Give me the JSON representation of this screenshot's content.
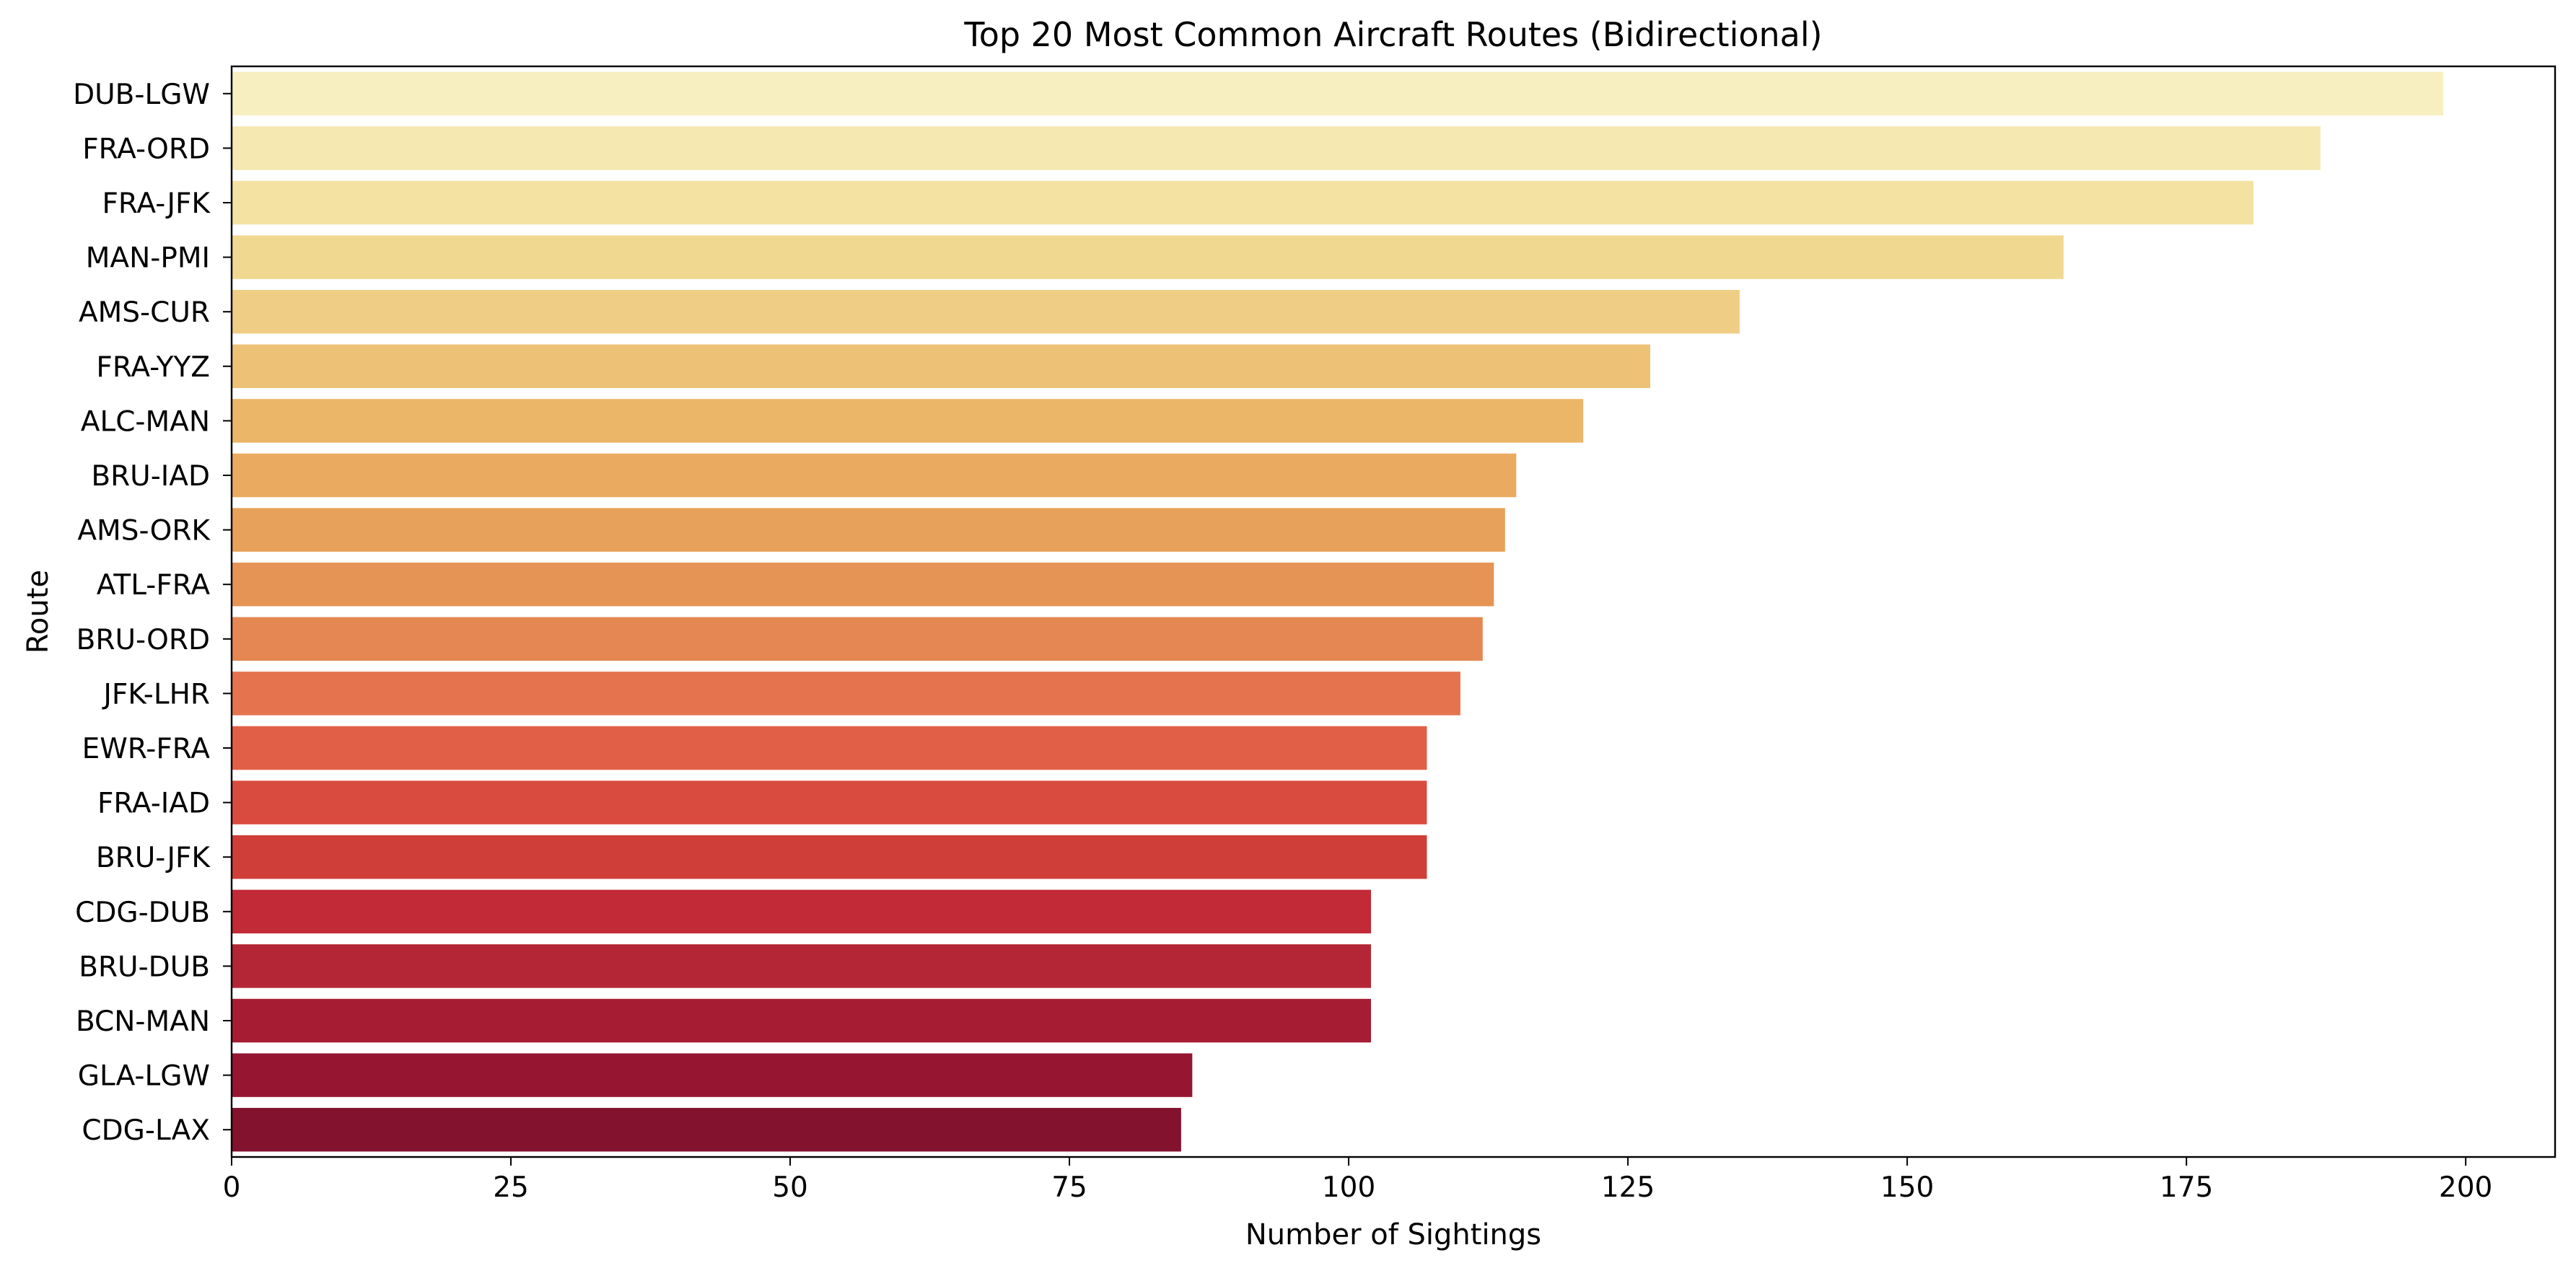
{
  "chart_data": {
    "type": "bar",
    "orientation": "horizontal",
    "title": "Top 20 Most Common Aircraft Routes (Bidirectional)",
    "xlabel": "Number of Sightings",
    "ylabel": "Route",
    "xlim": [
      0,
      208
    ],
    "xticks": [
      0,
      25,
      50,
      75,
      100,
      125,
      150,
      175,
      200
    ],
    "grid": false,
    "legend": "none",
    "categories": [
      "DUB-LGW",
      "FRA-ORD",
      "FRA-JFK",
      "MAN-PMI",
      "AMS-CUR",
      "FRA-YYZ",
      "ALC-MAN",
      "BRU-IAD",
      "AMS-ORK",
      "ATL-FRA",
      "BRU-ORD",
      "JFK-LHR",
      "EWR-FRA",
      "FRA-IAD",
      "BRU-JFK",
      "CDG-DUB",
      "BRU-DUB",
      "BCN-MAN",
      "GLA-LGW",
      "CDG-LAX"
    ],
    "values": [
      198,
      187,
      181,
      164,
      135,
      127,
      121,
      115,
      114,
      113,
      112,
      110,
      107,
      107,
      107,
      102,
      102,
      102,
      86,
      85
    ],
    "colors": [
      "#f8efc1",
      "#f5e8b0",
      "#f3e2a2",
      "#f1d891",
      "#efcd84",
      "#edc276",
      "#ebb667",
      "#eaaa5f",
      "#e8a15a",
      "#e69356",
      "#e58752",
      "#e5734e",
      "#e25f47",
      "#da4b3f",
      "#cf3e38",
      "#c22a37",
      "#b42635",
      "#a61d33",
      "#961632",
      "#82122e"
    ]
  }
}
